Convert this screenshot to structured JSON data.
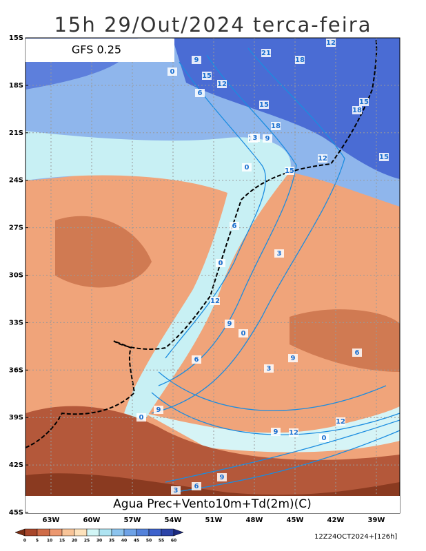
{
  "header": {
    "title": "15h 29/Out/2024 terca-feira",
    "model": "GFS 0.25"
  },
  "caption": "Agua Prec+Vento10m+Td(2m)(C)",
  "lat_labels": [
    "15S",
    "18S",
    "21S",
    "24S",
    "27S",
    "30S",
    "33S",
    "36S",
    "39S",
    "42S",
    "45S"
  ],
  "lon_labels": [
    "63W",
    "60W",
    "57W",
    "54W",
    "51W",
    "48W",
    "45W",
    "42W",
    "39W"
  ],
  "colorbar": {
    "labels": [
      "0",
      "5",
      "10",
      "15",
      "20",
      "25",
      "30",
      "35",
      "40",
      "45",
      "50",
      "55",
      "60"
    ]
  },
  "contour_labels": [
    "0",
    "9",
    "15",
    "12",
    "15",
    "18",
    "21",
    "18",
    "12",
    "15",
    "18",
    "15",
    "12",
    "0",
    "15",
    "12",
    "9",
    "6",
    "3",
    "6",
    "0",
    "12",
    "9",
    "0",
    "6",
    "9",
    "6",
    "3",
    "0",
    "9",
    "12",
    "9",
    "12",
    "0",
    "3",
    "6",
    "3",
    "9"
  ],
  "run": "12Z24OCT2024+[126h]"
}
